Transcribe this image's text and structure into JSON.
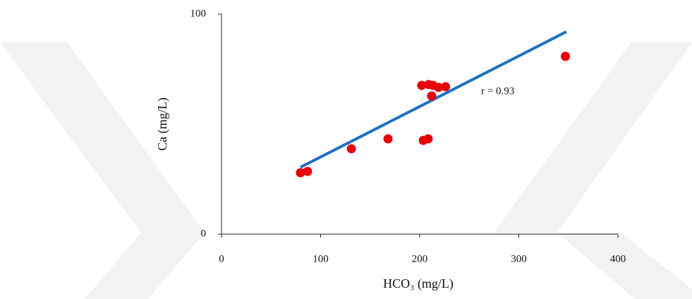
{
  "chart_data": {
    "type": "scatter",
    "xlabel": "HCO₃ (mg/L)",
    "ylabel": "Ca (mg/L)",
    "x": [
      79.7,
      86.8,
      131,
      168,
      203.6,
      208.5,
      202,
      209,
      212,
      213.5,
      219,
      226,
      347
    ],
    "series": [
      {
        "color": "#e8000b",
        "values": [
          27.9,
          28.5,
          38.8,
          43.3,
          42.6,
          43.3,
          67.6,
          68,
          62.8,
          67.6,
          66.7,
          67,
          80.8
        ]
      }
    ],
    "trendline": {
      "color": "#1f6fc5",
      "x": [
        79.7,
        348
      ],
      "y": [
        30.4,
        92
      ]
    },
    "annotation": "r = 0.93",
    "xlim": [
      0,
      400
    ],
    "xticks": [
      0,
      100,
      200,
      300,
      400
    ],
    "ylim": [
      0,
      100
    ],
    "yticks": [
      0,
      100
    ]
  }
}
